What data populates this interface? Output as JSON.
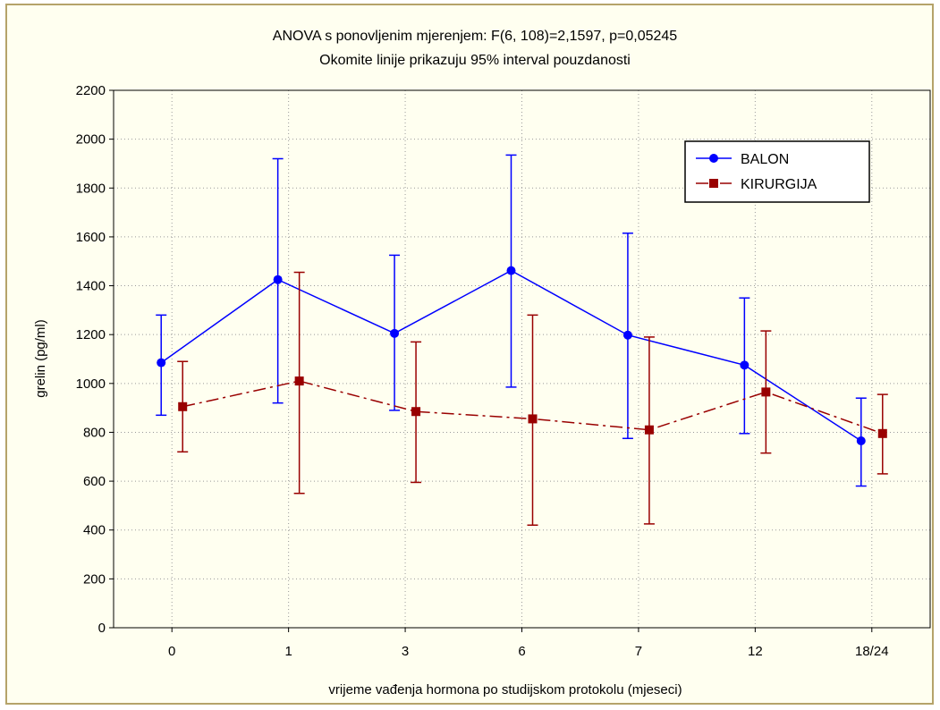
{
  "chart_data": {
    "type": "line",
    "title": "ANOVA s ponovljenim mjerenjem: F(6, 108)=2,1597, p=0,05245",
    "subtitle": "Okomite linije prikazuju 95% interval pouzdanosti",
    "xlabel": "vrijeme vađenja hormona po studijskom protokolu (mjeseci)",
    "ylabel": "grelin (pg/ml)",
    "categories": [
      "0",
      "1",
      "3",
      "6",
      "7",
      "12",
      "18/24"
    ],
    "ylim": [
      0,
      2200
    ],
    "yticks": [
      "0",
      "200",
      "400",
      "600",
      "800",
      "1000",
      "1200",
      "1400",
      "1600",
      "1800",
      "2000",
      "2200"
    ],
    "grid": true,
    "legend_position": "top-right",
    "series": [
      {
        "name": "BALON",
        "color": "#0000ff",
        "marker": "circle",
        "line_style": "solid",
        "values": [
          1085,
          1425,
          1205,
          1462,
          1198,
          1075,
          765
        ],
        "ci_low": [
          870,
          920,
          890,
          985,
          775,
          795,
          580
        ],
        "ci_high": [
          1280,
          1920,
          1525,
          1935,
          1615,
          1350,
          940
        ]
      },
      {
        "name": "KIRURGIJA",
        "color": "#990000",
        "marker": "square",
        "line_style": "dash-dot",
        "values": [
          905,
          1010,
          885,
          855,
          810,
          965,
          795
        ],
        "ci_low": [
          720,
          550,
          595,
          420,
          425,
          715,
          630
        ],
        "ci_high": [
          1090,
          1455,
          1170,
          1280,
          1190,
          1215,
          955
        ]
      }
    ]
  }
}
